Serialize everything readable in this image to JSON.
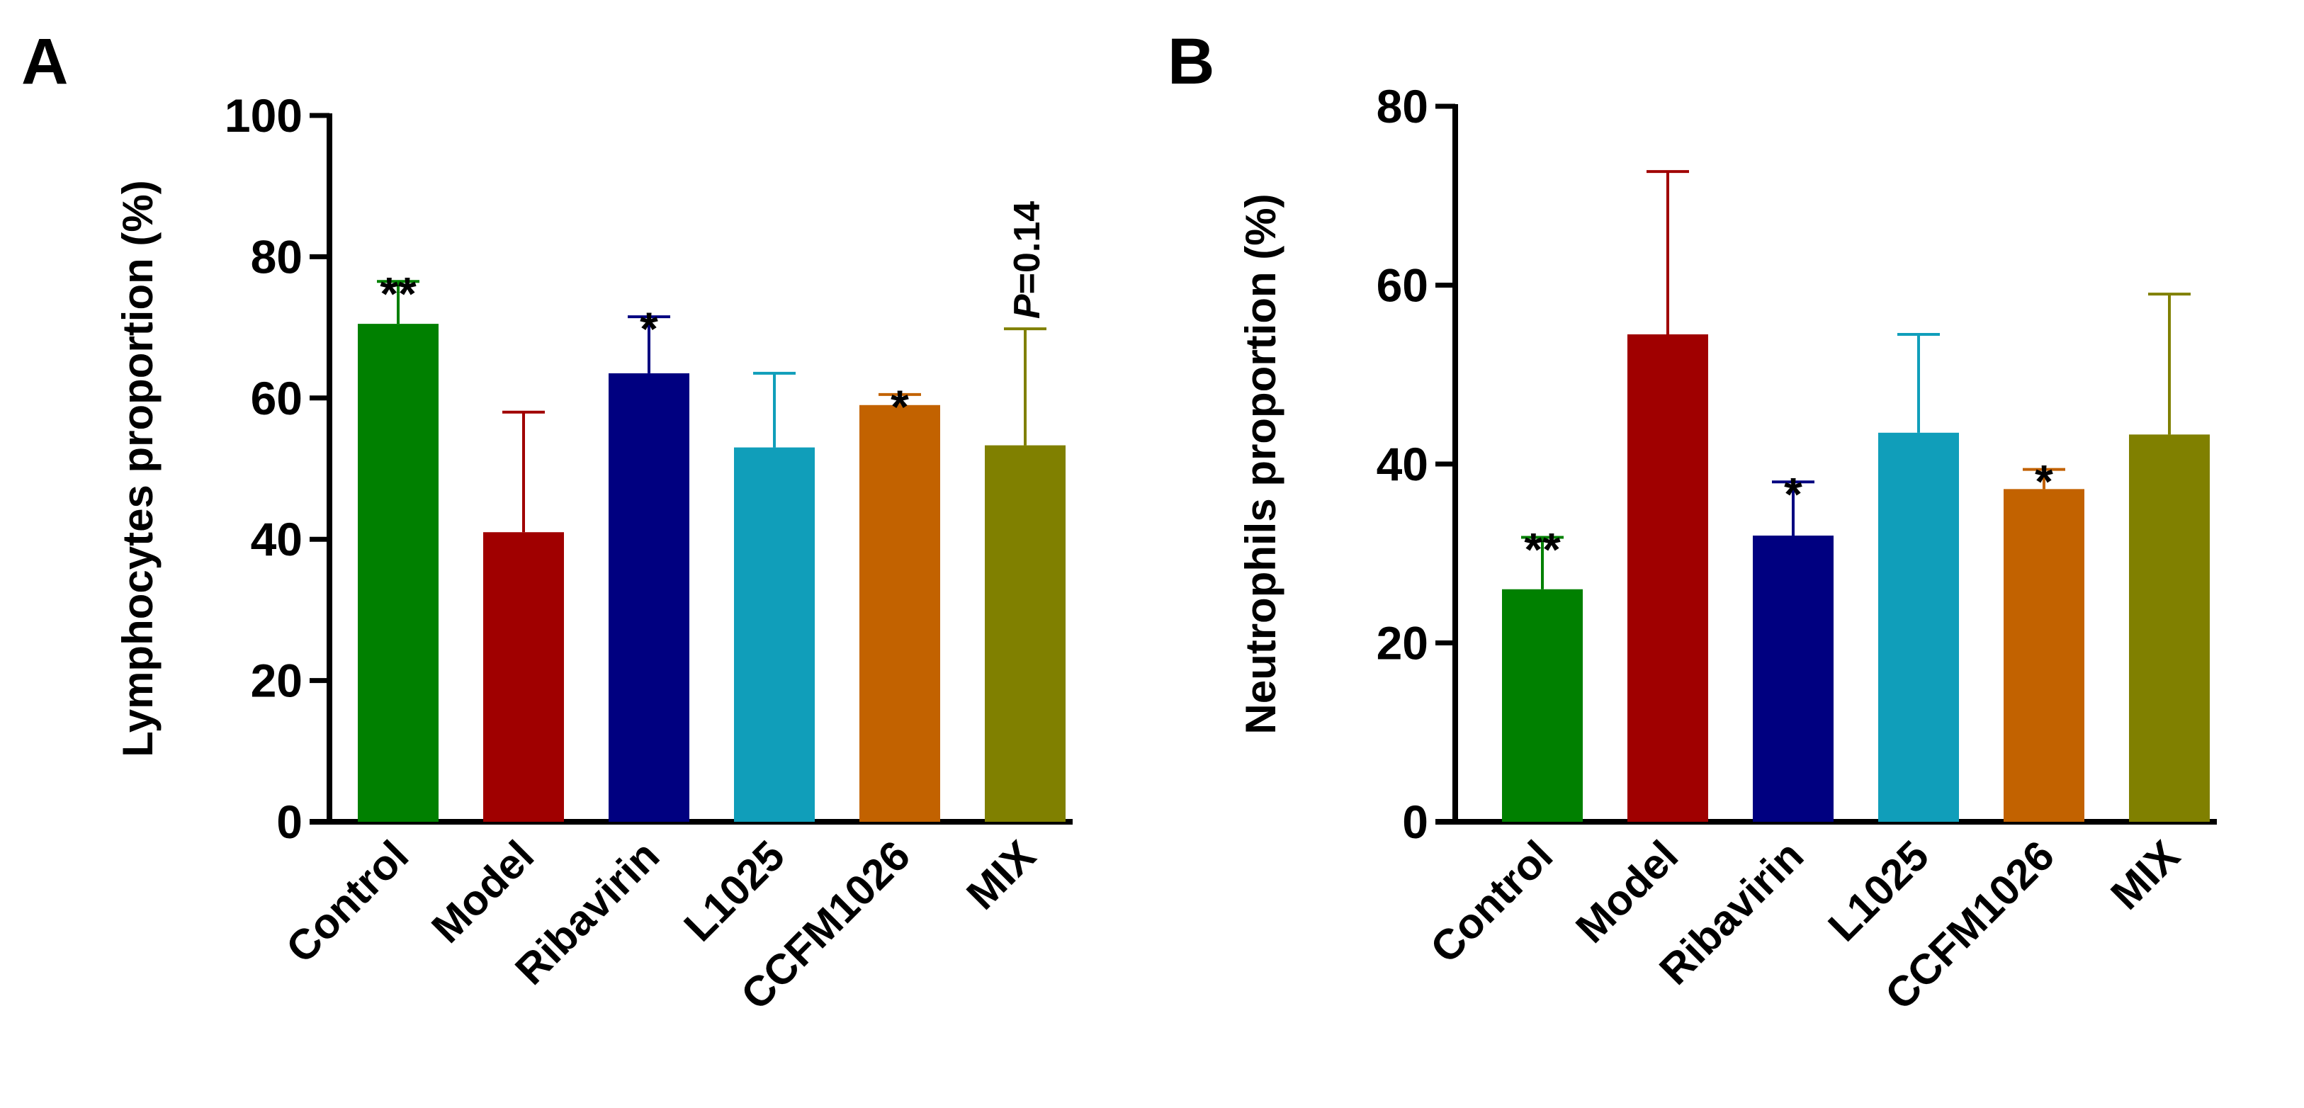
{
  "chart_data": [
    {
      "type": "bar",
      "panel_label": "A",
      "ylabel": "Lymphocytes proportion (%)",
      "ylim": [
        0,
        100
      ],
      "yticks": [
        0,
        20,
        40,
        60,
        80,
        100
      ],
      "categories": [
        "Control",
        "Model",
        "Ribavirin",
        "L1025",
        "CCFM1026",
        "MIX"
      ],
      "values": [
        70.5,
        41,
        63.5,
        53,
        59,
        53.3
      ],
      "errors": [
        6,
        17,
        8,
        10.5,
        1.5,
        16.5
      ],
      "colors": [
        "#008000",
        "#a00000",
        "#000080",
        "#109eba",
        "#c26200",
        "#808000"
      ],
      "annotations": [
        "**",
        "",
        "*",
        "",
        "*",
        "P=0.14"
      ]
    },
    {
      "type": "bar",
      "panel_label": "B",
      "ylabel": "Neutrophils proportion (%)",
      "ylim": [
        0,
        80
      ],
      "yticks": [
        0,
        20,
        40,
        60,
        80
      ],
      "categories": [
        "Control",
        "Model",
        "Ribavirin",
        "L1025",
        "CCFM1026",
        "MIX"
      ],
      "values": [
        26,
        54.5,
        32,
        43.5,
        37.2,
        43.3
      ],
      "errors": [
        5.8,
        18.2,
        6,
        11,
        2.2,
        15.7
      ],
      "colors": [
        "#008000",
        "#a00000",
        "#000080",
        "#109eba",
        "#c26200",
        "#808000"
      ],
      "annotations": [
        "**",
        "",
        "*",
        "",
        "*",
        ""
      ]
    }
  ]
}
